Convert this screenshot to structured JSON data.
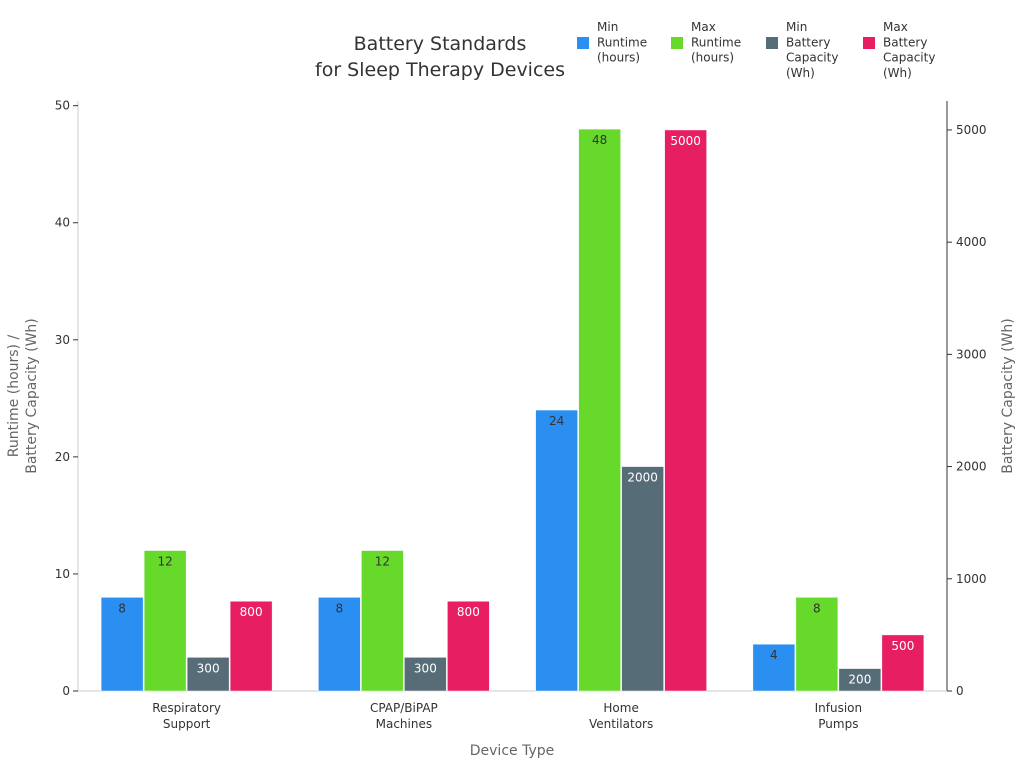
{
  "chart_data": {
    "type": "bar",
    "title": [
      "Battery Standards",
      "for Sleep Therapy Devices"
    ],
    "xlabel": "Device Type",
    "ylabel": [
      "Runtime (hours) /",
      "Battery Capacity (Wh)"
    ],
    "y2label": "Battery Capacity (Wh)",
    "categories": [
      [
        "Respiratory",
        "Support"
      ],
      [
        "CPAP/BiPAP",
        "Machines"
      ],
      [
        "Home",
        "Ventilators"
      ],
      [
        "Infusion",
        "Pumps"
      ]
    ],
    "ylim": [
      0,
      50.4
    ],
    "y2lim": [
      0,
      5258
    ],
    "yticks": [
      0,
      10,
      20,
      30,
      40,
      50
    ],
    "y2ticks": [
      0,
      1000,
      2000,
      3000,
      4000,
      5000
    ],
    "legend_position": "top-right",
    "series": [
      {
        "name": [
          "Min",
          "Runtime",
          "(hours)"
        ],
        "axis": "left",
        "color": "#2b8ff2",
        "label_color": "#333333",
        "values": [
          8,
          8,
          24,
          4
        ]
      },
      {
        "name": [
          "Max",
          "Runtime",
          "(hours)"
        ],
        "axis": "left",
        "color": "#66d92a",
        "label_color": "#333333",
        "values": [
          12,
          12,
          48,
          8
        ]
      },
      {
        "name": [
          "Min",
          "Battery",
          "Capacity",
          "(Wh)"
        ],
        "axis": "right",
        "color": "#566d78",
        "label_color": "#ffffff",
        "values": [
          300,
          300,
          2000,
          200
        ]
      },
      {
        "name": [
          "Max",
          "Battery",
          "Capacity",
          "(Wh)"
        ],
        "axis": "right",
        "color": "#e81e63",
        "label_color": "#ffffff",
        "values": [
          800,
          800,
          5000,
          500
        ]
      }
    ]
  }
}
